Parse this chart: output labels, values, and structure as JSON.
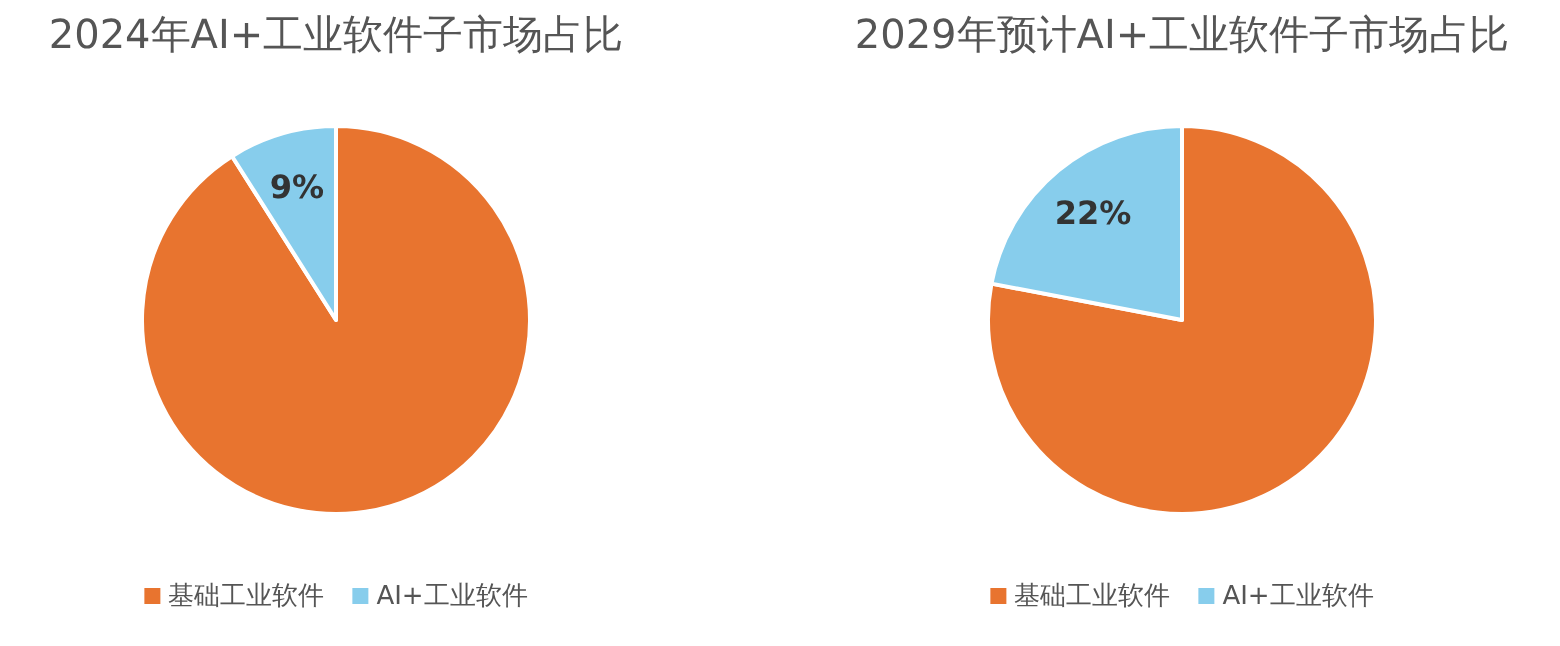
{
  "chart_data": [
    {
      "type": "pie",
      "title": "2024年AI+工业软件子市场占比",
      "categories": [
        "基础工业软件",
        "AI+工业软件"
      ],
      "values": [
        91,
        9
      ],
      "colors": [
        "#e8742f",
        "#87cdec"
      ],
      "value_labels": [
        null,
        "9%"
      ],
      "legend": "bottom"
    },
    {
      "type": "pie",
      "title": "2029年预计AI+工业软件子市场占比",
      "categories": [
        "基础工业软件",
        "AI+工业软件"
      ],
      "values": [
        78,
        22
      ],
      "colors": [
        "#e8742f",
        "#87cdec"
      ],
      "value_labels": [
        null,
        "22%"
      ],
      "legend": "bottom"
    }
  ]
}
